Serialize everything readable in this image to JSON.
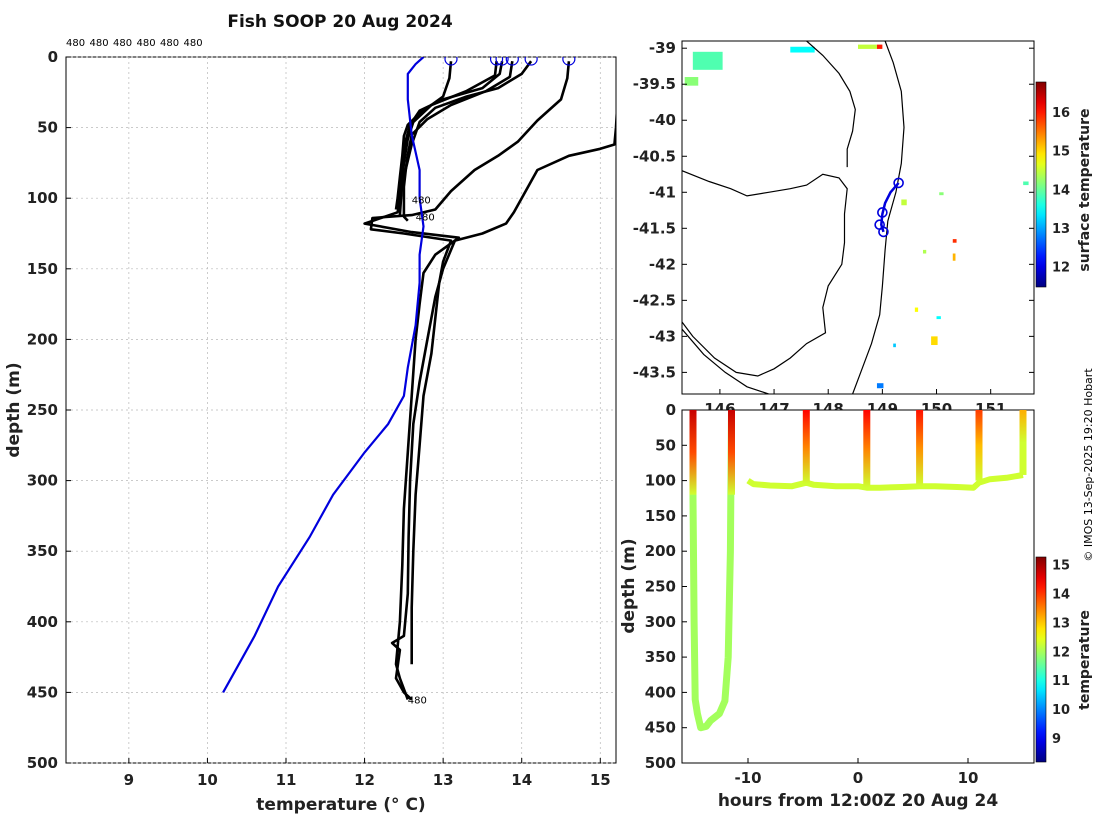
{
  "title": "Fish SOOP 20 Aug 2024",
  "copyright": "© IMOS 13-Sep-2025 19:20 Hobart",
  "top_labels": [
    "480",
    "480",
    "480",
    "480",
    "480",
    "480"
  ],
  "colors": {
    "profile": "#000000",
    "climatology": "#0000dd",
    "coast": "#000000"
  },
  "chart_data": [
    {
      "type": "line",
      "id": "profiles",
      "xlabel": "temperature (° C)",
      "ylabel": "depth (m)",
      "xlim": [
        8.2,
        15.2
      ],
      "ylim": [
        500,
        0
      ],
      "xticks": [
        9,
        10,
        11,
        12,
        13,
        14,
        15
      ],
      "yticks": [
        0,
        50,
        100,
        150,
        200,
        250,
        300,
        350,
        400,
        450,
        500
      ],
      "grid": true,
      "profile_labels": [
        {
          "text": "480",
          "x": 12.6,
          "y": 101
        },
        {
          "text": "480",
          "x": 12.65,
          "y": 113
        },
        {
          "text": "480",
          "x": 12.55,
          "y": 455
        }
      ],
      "surface_markers": [
        13.1,
        13.68,
        13.75,
        13.88,
        14.12,
        14.6
      ],
      "series": [
        {
          "points": [
            [
              13.1,
              3
            ],
            [
              13.08,
              15
            ],
            [
              13.0,
              28
            ],
            [
              12.7,
              40
            ],
            [
              12.55,
              48
            ],
            [
              12.5,
              56
            ],
            [
              12.48,
              70
            ],
            [
              12.45,
              85
            ],
            [
              12.42,
              100
            ],
            [
              12.4,
              108
            ]
          ]
        },
        {
          "points": [
            [
              13.75,
              3
            ],
            [
              13.72,
              12
            ],
            [
              13.5,
              22
            ],
            [
              13.0,
              30
            ],
            [
              12.7,
              38
            ],
            [
              12.58,
              48
            ],
            [
              12.52,
              60
            ],
            [
              12.48,
              75
            ],
            [
              12.46,
              90
            ],
            [
              12.44,
              105
            ]
          ]
        },
        {
          "points": [
            [
              13.68,
              3
            ],
            [
              13.66,
              13
            ],
            [
              13.3,
              24
            ],
            [
              12.85,
              34
            ],
            [
              12.62,
              46
            ],
            [
              12.55,
              58
            ],
            [
              12.5,
              75
            ],
            [
              12.47,
              95
            ],
            [
              12.45,
              112
            ]
          ]
        },
        {
          "points": [
            [
              13.88,
              3
            ],
            [
              13.85,
              14
            ],
            [
              13.55,
              24
            ],
            [
              13.1,
              34
            ],
            [
              12.8,
              44
            ],
            [
              12.6,
              55
            ],
            [
              12.54,
              72
            ],
            [
              12.5,
              92
            ],
            [
              12.5,
              113
            ],
            [
              12.55,
              116
            ]
          ]
        },
        {
          "points": [
            [
              14.12,
              3
            ],
            [
              14.0,
              12
            ],
            [
              13.7,
              22
            ],
            [
              13.3,
              28
            ],
            [
              12.9,
              36
            ],
            [
              12.7,
              46
            ],
            [
              12.6,
              62
            ],
            [
              12.5,
              85
            ],
            [
              12.42,
              110
            ],
            [
              12.0,
              118
            ],
            [
              12.6,
              124
            ],
            [
              13.2,
              128
            ],
            [
              12.9,
              140
            ],
            [
              12.75,
              153
            ],
            [
              12.7,
              175
            ],
            [
              12.65,
              200
            ],
            [
              12.6,
              240
            ],
            [
              12.55,
              280
            ],
            [
              12.5,
              320
            ],
            [
              12.48,
              360
            ],
            [
              12.45,
              400
            ],
            [
              12.4,
              430
            ],
            [
              12.45,
              440
            ],
            [
              12.55,
              455
            ]
          ]
        },
        {
          "points": [
            [
              14.6,
              3
            ],
            [
              14.58,
              15
            ],
            [
              14.5,
              30
            ],
            [
              14.2,
              45
            ],
            [
              13.95,
              60
            ],
            [
              13.7,
              70
            ],
            [
              13.4,
              80
            ],
            [
              13.1,
              95
            ],
            [
              12.9,
              108
            ],
            [
              12.6,
              112
            ],
            [
              12.1,
              114
            ],
            [
              12.08,
              122
            ],
            [
              12.5,
              125
            ],
            [
              13.1,
              130
            ],
            [
              13.0,
              145
            ],
            [
              12.95,
              160
            ],
            [
              12.9,
              185
            ],
            [
              12.85,
              210
            ],
            [
              12.75,
              240
            ],
            [
              12.7,
              275
            ],
            [
              12.65,
              310
            ],
            [
              12.62,
              350
            ],
            [
              12.6,
              390
            ],
            [
              12.6,
              430
            ]
          ]
        },
        {
          "points": [
            [
              15.22,
              0
            ],
            [
              15.22,
              30
            ],
            [
              15.2,
              50
            ],
            [
              15.18,
              62
            ],
            [
              15.0,
              65
            ],
            [
              14.6,
              70
            ],
            [
              14.2,
              80
            ],
            [
              14.0,
              100
            ],
            [
              13.9,
              110
            ],
            [
              13.8,
              118
            ],
            [
              13.5,
              125
            ],
            [
              13.15,
              130
            ],
            [
              13.0,
              150
            ],
            [
              12.9,
              170
            ],
            [
              12.8,
              200
            ],
            [
              12.7,
              230
            ],
            [
              12.62,
              260
            ],
            [
              12.58,
              300
            ],
            [
              12.56,
              340
            ],
            [
              12.55,
              380
            ],
            [
              12.5,
              410
            ],
            [
              12.35,
              415
            ],
            [
              12.45,
              420
            ],
            [
              12.4,
              440
            ],
            [
              12.5,
              450
            ],
            [
              12.6,
              455
            ]
          ]
        }
      ],
      "climatology": [
        [
          12.75,
          0
        ],
        [
          12.65,
          5
        ],
        [
          12.55,
          12
        ],
        [
          12.55,
          30
        ],
        [
          12.6,
          55
        ],
        [
          12.7,
          80
        ],
        [
          12.7,
          100
        ],
        [
          12.75,
          120
        ],
        [
          12.7,
          140
        ],
        [
          12.7,
          160
        ],
        [
          12.65,
          190
        ],
        [
          12.55,
          220
        ],
        [
          12.5,
          240
        ],
        [
          12.3,
          260
        ],
        [
          12.0,
          280
        ],
        [
          11.6,
          310
        ],
        [
          11.3,
          340
        ],
        [
          10.9,
          375
        ],
        [
          10.6,
          410
        ],
        [
          10.3,
          440
        ],
        [
          10.2,
          450
        ]
      ]
    },
    {
      "type": "map",
      "id": "sst_map",
      "xlim": [
        145.3,
        151.8
      ],
      "ylim": [
        -43.8,
        -38.9
      ],
      "xticks": [
        146,
        147,
        148,
        149,
        150,
        151
      ],
      "yticks": [
        -39,
        -39.5,
        -40,
        -40.5,
        -41,
        -41.5,
        -42,
        -42.5,
        -43,
        -43.5
      ],
      "colorbar": {
        "label": "surface temperature",
        "min": 11.5,
        "max": 16.8,
        "ticks": [
          12,
          13,
          14,
          15,
          16
        ]
      },
      "track": [
        [
          149.3,
          -40.87
        ],
        [
          149.15,
          -41.0
        ],
        [
          149.05,
          -41.15
        ],
        [
          149.0,
          -41.3
        ],
        [
          148.98,
          -41.45
        ],
        [
          149.02,
          -41.55
        ]
      ],
      "track_markers": [
        [
          149.3,
          -40.87
        ],
        [
          149.0,
          -41.28
        ],
        [
          148.95,
          -41.45
        ],
        [
          149.02,
          -41.55
        ]
      ],
      "sst_patches": [
        {
          "lon": 145.5,
          "lat": -39.05,
          "w": 0.55,
          "h": 0.25,
          "t": 13.9
        },
        {
          "lon": 145.35,
          "lat": -39.4,
          "w": 0.25,
          "h": 0.12,
          "t": 14.2
        },
        {
          "lon": 147.3,
          "lat": -38.98,
          "w": 0.45,
          "h": 0.08,
          "t": 13.5
        },
        {
          "lon": 148.55,
          "lat": -38.95,
          "w": 0.35,
          "h": 0.06,
          "t": 14.5
        },
        {
          "lon": 148.9,
          "lat": -38.95,
          "w": 0.1,
          "h": 0.06,
          "t": 16.0
        },
        {
          "lon": 149.35,
          "lat": -41.1,
          "w": 0.1,
          "h": 0.08,
          "t": 14.5
        },
        {
          "lon": 150.05,
          "lat": -41.0,
          "w": 0.08,
          "h": 0.04,
          "t": 14.2
        },
        {
          "lon": 151.6,
          "lat": -40.85,
          "w": 0.1,
          "h": 0.05,
          "t": 13.9
        },
        {
          "lon": 150.3,
          "lat": -41.65,
          "w": 0.07,
          "h": 0.05,
          "t": 15.9
        },
        {
          "lon": 150.3,
          "lat": -41.85,
          "w": 0.05,
          "h": 0.1,
          "t": 15.2
        },
        {
          "lon": 149.75,
          "lat": -41.8,
          "w": 0.06,
          "h": 0.05,
          "t": 14.4
        },
        {
          "lon": 149.6,
          "lat": -42.6,
          "w": 0.06,
          "h": 0.06,
          "t": 14.8
        },
        {
          "lon": 149.9,
          "lat": -43.0,
          "w": 0.12,
          "h": 0.12,
          "t": 15.0
        },
        {
          "lon": 150.0,
          "lat": -42.72,
          "w": 0.08,
          "h": 0.04,
          "t": 13.5
        },
        {
          "lon": 149.2,
          "lat": -43.1,
          "w": 0.05,
          "h": 0.05,
          "t": 13.2
        },
        {
          "lon": 148.9,
          "lat": -43.65,
          "w": 0.12,
          "h": 0.07,
          "t": 12.8
        }
      ]
    },
    {
      "type": "scatter",
      "id": "depth_time",
      "xlabel": "hours from 12:00Z 20 Aug 24",
      "ylabel": "depth (m)",
      "xlim": [
        -16,
        16
      ],
      "ylim": [
        500,
        0
      ],
      "xticks": [
        -10,
        0,
        10
      ],
      "yticks": [
        0,
        50,
        100,
        150,
        200,
        250,
        300,
        350,
        400,
        450,
        500
      ],
      "colorbar": {
        "label": "temperature",
        "min": 8.2,
        "max": 15.3,
        "ticks": [
          9,
          10,
          11,
          12,
          13,
          14,
          15
        ]
      },
      "casts": [
        {
          "t": -15.0,
          "bottom": 120,
          "surf_t": 14.8
        },
        {
          "t": -11.5,
          "bottom": 120,
          "surf_t": 14.8
        },
        {
          "t": -4.7,
          "bottom": 105,
          "surf_t": 14.4
        },
        {
          "t": 0.8,
          "bottom": 110,
          "surf_t": 14.4
        },
        {
          "t": 5.6,
          "bottom": 108,
          "surf_t": 14.3
        },
        {
          "t": 11.0,
          "bottom": 100,
          "surf_t": 14.0
        },
        {
          "t": 15.0,
          "bottom": 92,
          "surf_t": 13.2
        }
      ],
      "deep_dive": [
        [
          -15.0,
          0
        ],
        [
          -15.0,
          125
        ],
        [
          -14.9,
          300
        ],
        [
          -14.8,
          410
        ],
        [
          -14.6,
          430
        ],
        [
          -14.3,
          450
        ],
        [
          -13.8,
          448
        ],
        [
          -13.4,
          440
        ],
        [
          -12.6,
          430
        ],
        [
          -12.1,
          412
        ],
        [
          -11.8,
          350
        ],
        [
          -11.6,
          200
        ],
        [
          -11.5,
          0
        ]
      ],
      "bottom_track": [
        [
          -10,
          100
        ],
        [
          -9.5,
          105
        ],
        [
          -8,
          107
        ],
        [
          -6,
          108
        ],
        [
          -4.7,
          103
        ],
        [
          -4,
          106
        ],
        [
          -2,
          108
        ],
        [
          0,
          108
        ],
        [
          0.8,
          110
        ],
        [
          2,
          110
        ],
        [
          4,
          109
        ],
        [
          5.6,
          108
        ],
        [
          7,
          108
        ],
        [
          9,
          109
        ],
        [
          10.5,
          110
        ],
        [
          11,
          103
        ],
        [
          12,
          98
        ],
        [
          13.5,
          96
        ],
        [
          15,
          92
        ]
      ],
      "bottom_temp": 12.3
    }
  ]
}
